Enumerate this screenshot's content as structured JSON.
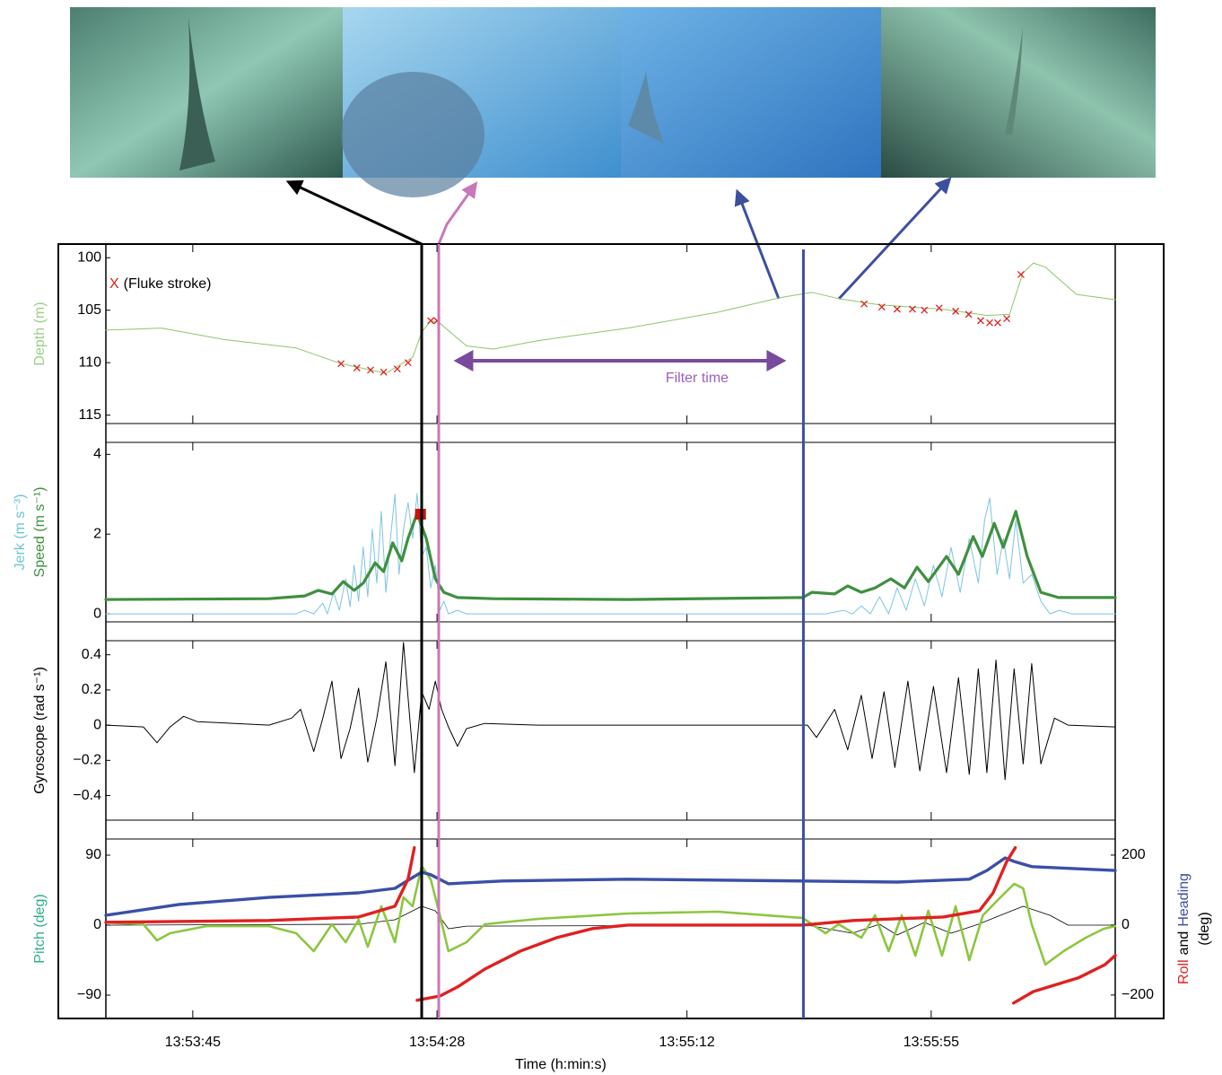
{
  "chart_data": [
    {
      "type": "line",
      "ylabel": {
        "text": "Depth (m)",
        "color": "#9bcf8a"
      },
      "ylim": [
        98.7,
        115.8
      ],
      "y_inverted": true,
      "yticks": [
        100,
        105,
        110,
        115
      ],
      "series": [
        {
          "color": "#8cc66a",
          "width": 1,
          "x": [
            50009.7,
            50019.5,
            50030.5,
            50043.2,
            50051.1,
            50059,
            50063.7,
            50065.3,
            50066.9,
            50068.4,
            50073.2,
            50077.9,
            50085.8,
            50101.6,
            50117.4,
            50128.5,
            50134,
            50138.7,
            50145.9,
            50156.9,
            50164.8,
            50168.8,
            50171.1,
            50173,
            50175.1,
            50180.6,
            50187.4
          ],
          "values": [
            106.9,
            106.7,
            107.8,
            108.6,
            110.1,
            111,
            109.5,
            107.1,
            106,
            106.2,
            108.4,
            108.7,
            107.9,
            106.7,
            105.2,
            103.8,
            103.3,
            103.9,
            104.5,
            104.9,
            105.5,
            105.4,
            101.5,
            100.5,
            100.9,
            103.5,
            104
          ]
        },
        {
          "name": "(Fluke stroke)",
          "marker": "X",
          "mode": "markers",
          "color": "#e02020",
          "x": [
            50051.1,
            50053.9,
            50056.3,
            50058.6,
            50061,
            50062.9,
            50066.9,
            50068,
            50143.2,
            50146.3,
            50149,
            50151.7,
            50153.8,
            50156.4,
            50159.3,
            50161.6,
            50163.7,
            50165.3,
            50166.7,
            50168.3,
            50170.8
          ],
          "values": [
            110.1,
            110.5,
            110.7,
            110.9,
            110.6,
            110,
            106,
            106,
            104.4,
            104.7,
            104.9,
            104.9,
            105,
            104.8,
            105.1,
            105.4,
            106,
            106.2,
            106.2,
            105.8,
            101.6
          ]
        }
      ],
      "vlines": [
        {
          "x": 50065.3,
          "color": "#000000"
        },
        {
          "x": 50068.3,
          "color": "#c878b8"
        },
        {
          "x": 50132.5,
          "color": "#3d4f9f"
        }
      ],
      "annotation": {
        "label": "Filter time",
        "x": [
          50070.9,
          50129.5
        ],
        "color": "#7a4a9e",
        "text_color": "#9b5fc0"
      }
    },
    {
      "type": "line",
      "ylabel": [
        {
          "text": "Jerk (m s⁻³)",
          "color": "#6cc4d8"
        },
        {
          "text": "Speed (m s⁻¹)",
          "color": "#3f8f3f"
        }
      ],
      "ylim": [
        -0.2,
        4.3
      ],
      "yticks": [
        0,
        2,
        4
      ],
      "series": [
        {
          "color": "#7fc4e0",
          "width": 1,
          "x": [
            50009.7,
            50038.4,
            50043.2,
            50044.7,
            50046.3,
            50047.9,
            50048.7,
            50049.8,
            50050.8,
            50051.9,
            50052.7,
            50053.4,
            50054.2,
            50055,
            50055.8,
            50056.6,
            50057.4,
            50058.2,
            50059,
            50059.8,
            50060.6,
            50061.3,
            50062.1,
            50062.9,
            50063.7,
            50064.5,
            50065.3,
            50066.1,
            50066.9,
            50067.7,
            50068.5,
            50069.2,
            50070,
            50071.6,
            50073.2,
            50076.4,
            50079.5,
            50133.2,
            50136.4,
            50139.6,
            50141.1,
            50142.7,
            50144.3,
            50145.9,
            50147.5,
            50149,
            50150.6,
            50152.2,
            50153.8,
            50155.4,
            50156.9,
            50158.5,
            50160.1,
            50161.7,
            50163.3,
            50164.4,
            50165.3,
            50166.6,
            50167.7,
            50168.8,
            50169.9,
            50171.2,
            50172.7,
            50174.3,
            50175.9,
            50177.5,
            50179.8,
            50182.2,
            50185.4,
            50187.4
          ],
          "values": [
            0,
            0,
            0,
            0.09,
            0,
            0.27,
            0,
            0.54,
            0.09,
            0.88,
            0.18,
            1.22,
            0.32,
            1.67,
            0.43,
            2.12,
            0.77,
            2.57,
            0.54,
            1.89,
            3,
            0.99,
            2.12,
            2.79,
            1.89,
            3.02,
            1.44,
            1.67,
            0.65,
            1.22,
            0.09,
            0.32,
            0,
            0.09,
            0,
            0,
            0,
            0,
            0,
            0.09,
            0,
            0.2,
            0,
            0.43,
            0,
            0.65,
            0.09,
            0.88,
            0.2,
            1.22,
            0.43,
            1.67,
            0.54,
            1.89,
            0.77,
            2.35,
            2.9,
            0.99,
            1.89,
            0.88,
            2.35,
            0.77,
            0.99,
            0.32,
            0,
            0.09,
            0,
            0,
            0,
            0
          ]
        },
        {
          "color": "#3f8f3f",
          "width": 3.2,
          "x": [
            50009.7,
            50038.4,
            50044.7,
            50047.1,
            50049.5,
            50051.5,
            50053.4,
            50055,
            50057.1,
            50058.6,
            50060.2,
            50061.8,
            50062.9,
            50064.5,
            50066.1,
            50067.7,
            50069.2,
            50071.6,
            50077.9,
            50101.6,
            50132.4,
            50134,
            50138,
            50140.3,
            50142.7,
            50145.1,
            50147.9,
            50150.3,
            50152.5,
            50154.5,
            50157.7,
            50159.8,
            50162.4,
            50164,
            50166.1,
            50167.7,
            50169.9,
            50171.9,
            50174.3,
            50177.4,
            50187.4
          ],
          "values": [
            0.36,
            0.38,
            0.45,
            0.59,
            0.5,
            0.81,
            0.59,
            0.77,
            1.28,
            1.06,
            1.78,
            1.33,
            1.89,
            2.52,
            1.89,
            0.88,
            0.54,
            0.41,
            0.38,
            0.36,
            0.41,
            0.54,
            0.5,
            0.7,
            0.54,
            0.65,
            0.88,
            0.65,
            1.17,
            0.81,
            1.44,
            0.99,
            1.94,
            1.44,
            2.27,
            1.67,
            2.57,
            1.44,
            0.54,
            0.41,
            0.41
          ]
        }
      ],
      "highlight": {
        "x": 50065.1,
        "y": 2.5,
        "color": "#cc1111"
      }
    },
    {
      "type": "line",
      "ylabel": {
        "text": "Gyroscope (rad s⁻¹)",
        "color": "#000000"
      },
      "ylim": [
        -0.54,
        0.48
      ],
      "yticks": [
        {
          "value": -0.4,
          "label": "−0.4"
        },
        {
          "value": -0.2,
          "label": "−0.2"
        },
        0,
        0.2,
        0.4
      ],
      "series": [
        {
          "color": "#000000",
          "width": 1,
          "x": [
            50009.7,
            50016.3,
            50018.7,
            50021,
            50023.4,
            50025.8,
            50038.4,
            50042.4,
            50044,
            50046.3,
            50047.9,
            50049.5,
            50051.1,
            50052.7,
            50054.2,
            50055.8,
            50057.4,
            50059,
            50060.6,
            50062.1,
            50064,
            50065.3,
            50066.6,
            50067.7,
            50068.8,
            50070,
            50071.6,
            50073.2,
            50076.4,
            50085.8,
            50133.2,
            50134.8,
            50138,
            50140.3,
            50142.7,
            50144.6,
            50146.7,
            50148.6,
            50150.9,
            50153,
            50155.4,
            50157.7,
            50159.8,
            50161.7,
            50163.3,
            50164.8,
            50166.4,
            50168,
            50169.6,
            50171.2,
            50172.7,
            50174.3,
            50176.7,
            50179.1,
            50187.4
          ],
          "values": [
            0,
            -0.01,
            -0.1,
            -0.01,
            0.05,
            0.02,
            0,
            0.04,
            0.09,
            -0.15,
            0.04,
            0.25,
            -0.19,
            -0.02,
            0.21,
            -0.21,
            0.04,
            0.36,
            -0.23,
            0.47,
            -0.27,
            0.19,
            0.09,
            0.25,
            0.09,
            -0.01,
            -0.12,
            -0.02,
            0.01,
            0,
            0,
            -0.07,
            0.09,
            -0.14,
            0.17,
            -0.19,
            0.19,
            -0.24,
            0.25,
            -0.26,
            0.22,
            -0.27,
            0.27,
            -0.28,
            0.32,
            -0.27,
            0.37,
            -0.31,
            0.32,
            -0.22,
            0.35,
            -0.22,
            0.04,
            0,
            -0.01
          ]
        }
      ]
    },
    {
      "type": "line",
      "ylabel": {
        "text": "Pitch (deg)",
        "color": "#2db08a"
      },
      "ylim": [
        -120,
        110.8
      ],
      "yticks": [
        {
          "value": -90,
          "label": "−90"
        },
        0,
        90
      ],
      "y2label": [
        {
          "text": "Roll",
          "color": "#e02020"
        },
        {
          "text": "and",
          "color": "#000000"
        },
        {
          "text": "Heading",
          "color": "#3b4fa8"
        },
        {
          "text": "(deg)",
          "color": "#000000"
        }
      ],
      "y2lim": [
        -267,
        246
      ],
      "y2ticks": [
        {
          "value": -200,
          "label": "−200"
        },
        0,
        200
      ],
      "xlabel": "Time (h:min:s)",
      "xlim": [
        50009.7,
        50187.4
      ],
      "xticks": [
        {
          "value": 50025,
          "label": "13:53:45"
        },
        {
          "value": 50068,
          "label": "13:54:28"
        },
        {
          "value": 50112,
          "label": "13:55:12"
        },
        {
          "value": 50155,
          "label": "13:55:55"
        }
      ],
      "series": [
        {
          "color": "#000000",
          "width": 0.8,
          "x": [
            50009.7,
            50054.2,
            50060.6,
            50065.3,
            50067.7,
            50070,
            50073.2,
            50133.2,
            50141.1,
            50145.9,
            50149,
            50153.8,
            50158.5,
            50163.3,
            50167.2,
            50171.2,
            50175.9,
            50179.1,
            50187.4
          ],
          "values": [
            0,
            1.2,
            6.9,
            24.2,
            18.5,
            -4.6,
            -1.2,
            0,
            -10.4,
            1.2,
            -12.7,
            3.5,
            -10.4,
            1.2,
            12.7,
            24.2,
            12.7,
            0,
            0
          ]
        },
        {
          "color": "#8cc63f",
          "width": 2.6,
          "x": [
            50009.7,
            50016.3,
            50018.7,
            50021,
            50027.4,
            50038.4,
            50043.2,
            50046.3,
            50049.5,
            50051.9,
            50054.2,
            50055.8,
            50058.2,
            50060.6,
            50062.1,
            50063.7,
            50065.3,
            50066.9,
            50068.5,
            50070,
            50073.2,
            50076.4,
            50079.5,
            50085.8,
            50101.6,
            50117.4,
            50132.4,
            50134,
            50136.4,
            50138.7,
            50142.7,
            50145.1,
            50147.5,
            50149.8,
            50152.2,
            50154.5,
            50156.9,
            50159.3,
            50161.7,
            50164.1,
            50167.2,
            50169.6,
            50171.2,
            50172.7,
            50175.1,
            50178.3,
            50182.2,
            50185.4,
            50187.4
          ],
          "values": [
            3.5,
            1.2,
            -19.6,
            -10.4,
            -1.2,
            -1.2,
            -10.4,
            -33.4,
            1.2,
            -21.9,
            6.9,
            -27.7,
            24.2,
            -21.9,
            35.8,
            24.2,
            76.1,
            58.8,
            12.7,
            -33.4,
            -21.9,
            1.2,
            3.5,
            8.1,
            15,
            17.3,
            9.2,
            1.2,
            -10.4,
            1.2,
            -16.1,
            12.7,
            -33.4,
            12.7,
            -39.2,
            18.5,
            -39.2,
            24.2,
            -45,
            12.7,
            35.8,
            53.1,
            47.3,
            1.2,
            -50.7,
            -33.4,
            -16.1,
            -4.6,
            -1.2
          ]
        },
        {
          "axis": "y2",
          "color": "#3b4fa8",
          "width": 3.4,
          "x": [
            50009.7,
            50022.6,
            50038.4,
            50054.2,
            50060.6,
            50063.7,
            50065.3,
            50066.9,
            50070,
            50079.5,
            50101.6,
            50132.4,
            50149,
            50161.7,
            50164.8,
            50168,
            50169.6,
            50172.7,
            50179.1,
            50187.4
          ],
          "values": [
            28,
            59,
            79,
            92,
            105,
            136,
            151,
            144,
            118,
            126,
            131,
            126,
            123,
            131,
            156,
            192,
            182,
            167,
            162,
            156
          ]
        },
        {
          "axis": "y2",
          "color": "#e02020",
          "width": 3.4,
          "x": [
            50009.7,
            50038.4,
            50054.2,
            50060.6,
            50062.9,
            50064,
            null,
            50064.5,
            50068.5,
            50071.6,
            50076.4,
            50082.7,
            50089.1,
            50095.4,
            50101.6,
            50132.4,
            50141.3,
            50157.1,
            50163.5,
            50165.9,
            50168.3,
            50169.8,
            null,
            50169.5,
            50173,
            50180.9,
            50185.6,
            50187.4
          ],
          "values": [
            8,
            13,
            23,
            54,
            131,
            221,
            null,
            -215,
            -203,
            -177,
            -126,
            -74,
            -36,
            -10,
            0,
            0,
            13,
            23,
            41,
            92,
            182,
            221,
            null,
            -223,
            -190,
            -151,
            -113,
            -87
          ]
        }
      ]
    }
  ]
}
